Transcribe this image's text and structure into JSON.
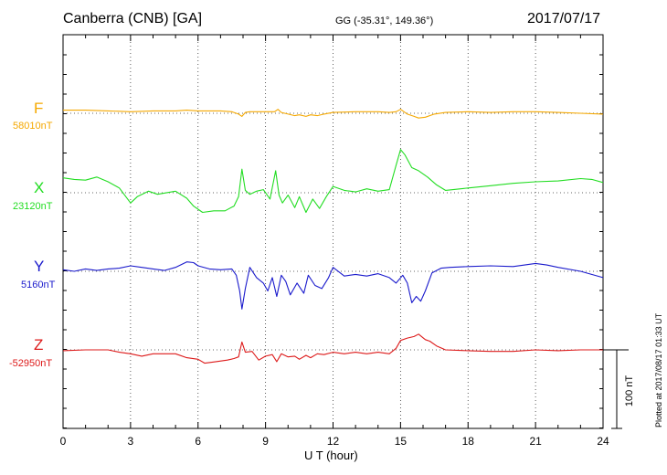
{
  "header": {
    "station": "Canberra (CNB)  [GA]",
    "coords": "GG (-35.31°, 149.36°)",
    "date": "2017/07/17"
  },
  "footer": {
    "xlabel": "U T (hour)",
    "plotted": "Plotted at 2017/08/17 01:33 UT"
  },
  "chart_data": {
    "type": "line",
    "xlabel": "U T (hour)",
    "xlim": [
      0,
      24
    ],
    "xticks": [
      "0",
      "3",
      "6",
      "9",
      "12",
      "15",
      "18",
      "21",
      "24"
    ],
    "scale_bar": {
      "label": "100 nT",
      "nt": 100
    },
    "grid": true,
    "colors": {
      "F": "#f5a800",
      "X": "#22dd22",
      "Y": "#1a1acc",
      "Z": "#dd1a1a"
    },
    "series": [
      {
        "name": "F",
        "baseline_label": "58010nT",
        "x": [
          0,
          1,
          2,
          3,
          4,
          5,
          5.5,
          6,
          7,
          7.5,
          7.8,
          7.95,
          8.1,
          8.3,
          9,
          9.4,
          9.55,
          9.7,
          10,
          10.3,
          10.5,
          10.8,
          11,
          11.3,
          11.6,
          12,
          13,
          14,
          14.5,
          14.8,
          15,
          15.3,
          15.6,
          15.8,
          16.1,
          16.5,
          17,
          18,
          19,
          20,
          21,
          22,
          23,
          24
        ],
        "values": [
          4,
          4,
          3,
          2,
          3,
          3,
          4,
          3,
          3,
          2,
          -1,
          -4,
          1,
          2,
          2,
          2,
          5,
          1,
          -1,
          -3,
          -2,
          -4,
          -2,
          -3,
          -1,
          1,
          2,
          2,
          1,
          2,
          5,
          -1,
          -4,
          -6,
          -5,
          -1,
          1,
          2,
          1,
          2,
          2,
          1,
          0,
          -1
        ]
      },
      {
        "name": "X",
        "baseline_label": "23120nT",
        "x": [
          0,
          0.5,
          1,
          1.5,
          2,
          2.5,
          3,
          3.3,
          3.8,
          4.2,
          5,
          5.5,
          5.8,
          6.2,
          6.7,
          7.2,
          7.6,
          7.8,
          7.95,
          8.1,
          8.3,
          8.6,
          8.9,
          9.2,
          9.45,
          9.6,
          9.75,
          10,
          10.3,
          10.5,
          10.8,
          11.1,
          11.4,
          11.7,
          12,
          12.5,
          13,
          13.5,
          14,
          14.5,
          14.8,
          15,
          15.2,
          15.5,
          15.8,
          16.2,
          16.6,
          17,
          18,
          19,
          20,
          21,
          22,
          23,
          23.5,
          24
        ],
        "values": [
          19,
          17,
          16,
          20,
          14,
          6,
          -13,
          -5,
          2,
          -2,
          2,
          -7,
          -17,
          -25,
          -23,
          -23,
          -17,
          -5,
          30,
          3,
          -2,
          2,
          4,
          -8,
          28,
          -3,
          -13,
          -3,
          -19,
          -5,
          -25,
          -8,
          -20,
          -5,
          8,
          3,
          1,
          5,
          2,
          4,
          35,
          55,
          48,
          32,
          28,
          20,
          10,
          3,
          6,
          9,
          12,
          14,
          15,
          18,
          17,
          13
        ]
      },
      {
        "name": "Y",
        "baseline_label": "5160nT",
        "x": [
          0,
          0.5,
          1,
          1.5,
          2,
          2.5,
          3,
          3.5,
          4,
          4.5,
          5,
          5.5,
          5.8,
          6,
          6.5,
          7,
          7.5,
          7.7,
          7.85,
          7.95,
          8.1,
          8.3,
          8.6,
          8.9,
          9.1,
          9.3,
          9.5,
          9.7,
          9.9,
          10.1,
          10.4,
          10.7,
          10.9,
          11.2,
          11.5,
          11.8,
          12,
          12.5,
          13,
          13.5,
          14,
          14.5,
          14.8,
          15.1,
          15.3,
          15.5,
          15.7,
          15.9,
          16.1,
          16.4,
          16.8,
          17.2,
          18,
          19,
          20,
          21,
          21.5,
          22,
          23,
          24
        ],
        "values": [
          2,
          0,
          3,
          1,
          3,
          4,
          7,
          5,
          3,
          1,
          5,
          12,
          11,
          7,
          3,
          2,
          3,
          -5,
          -25,
          -48,
          -22,
          5,
          -8,
          -15,
          -25,
          -8,
          -32,
          -5,
          -13,
          -30,
          -15,
          -28,
          -5,
          -18,
          -22,
          -8,
          5,
          -6,
          -4,
          -6,
          -3,
          -8,
          -15,
          -5,
          -15,
          -40,
          -32,
          -38,
          -25,
          -2,
          4,
          5,
          6,
          7,
          6,
          10,
          8,
          5,
          0,
          -8
        ]
      },
      {
        "name": "Z",
        "baseline_label": "-52950nT",
        "x": [
          0,
          1,
          2,
          2.5,
          3,
          3.5,
          4,
          5,
          5.5,
          6,
          6.3,
          6.8,
          7.3,
          7.6,
          7.8,
          7.95,
          8.1,
          8.4,
          8.7,
          9,
          9.3,
          9.5,
          9.7,
          10,
          10.3,
          10.5,
          10.8,
          11,
          11.3,
          11.6,
          12,
          12.5,
          13,
          13.5,
          14,
          14.5,
          14.8,
          15,
          15.3,
          15.6,
          15.8,
          16.1,
          16.3,
          16.6,
          17,
          18,
          19,
          20,
          21,
          22,
          23,
          24
        ],
        "values": [
          -1,
          0,
          0,
          -3,
          -5,
          -8,
          -5,
          -5,
          -10,
          -12,
          -17,
          -15,
          -13,
          -11,
          -9,
          10,
          -3,
          -2,
          -13,
          -8,
          -6,
          -15,
          -5,
          -9,
          -8,
          -12,
          -7,
          -10,
          -5,
          -6,
          -3,
          -5,
          -3,
          -5,
          -3,
          -5,
          2,
          12,
          15,
          17,
          20,
          13,
          11,
          5,
          0,
          -1,
          -2,
          -2,
          0,
          -1,
          0,
          0
        ]
      }
    ]
  }
}
